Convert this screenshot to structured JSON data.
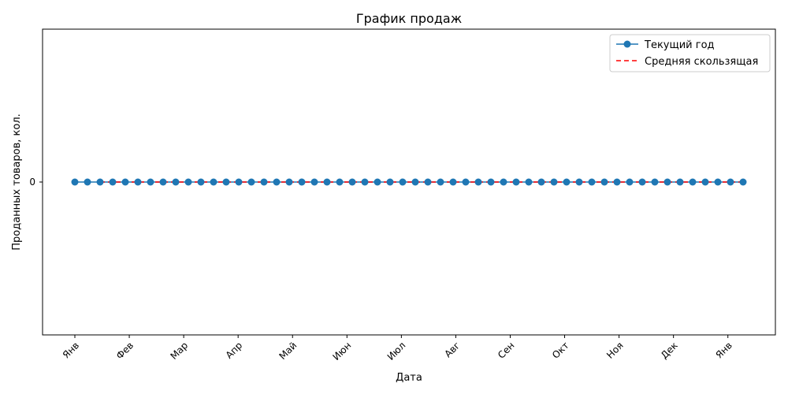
{
  "chart_data": {
    "type": "line",
    "title": "График продаж",
    "xlabel": "Дата",
    "ylabel": "Проданных товаров, кол.",
    "x_tick_labels": [
      "Янв",
      "Фев",
      "Мар",
      "Апр",
      "Май",
      "Июн",
      "Июл",
      "Авг",
      "Сен",
      "Окт",
      "Ноя",
      "Дек",
      "Янв"
    ],
    "y_tick_labels": [
      "0"
    ],
    "y_ticks": [
      0
    ],
    "ylim": [
      -0.06,
      0.06
    ],
    "legend_position": "top-right",
    "series": [
      {
        "name": "Текущий год",
        "style": "solid-line-with-circle-markers",
        "color": "#1f77b4",
        "point_count": 54,
        "values": [
          0,
          0,
          0,
          0,
          0,
          0,
          0,
          0,
          0,
          0,
          0,
          0,
          0,
          0,
          0,
          0,
          0,
          0,
          0,
          0,
          0,
          0,
          0,
          0,
          0,
          0,
          0,
          0,
          0,
          0,
          0,
          0,
          0,
          0,
          0,
          0,
          0,
          0,
          0,
          0,
          0,
          0,
          0,
          0,
          0,
          0,
          0,
          0,
          0,
          0,
          0,
          0,
          0,
          0
        ]
      },
      {
        "name": "Средняя скользящая",
        "style": "dashed-line",
        "color": "#ff0000",
        "values": [
          0,
          0,
          0,
          0,
          0,
          0,
          0,
          0,
          0,
          0,
          0,
          0,
          0,
          0,
          0,
          0,
          0,
          0,
          0,
          0,
          0,
          0,
          0,
          0,
          0,
          0,
          0,
          0,
          0,
          0,
          0,
          0,
          0,
          0,
          0,
          0,
          0,
          0,
          0,
          0,
          0,
          0,
          0,
          0,
          0,
          0,
          0,
          0,
          0,
          0,
          0,
          0,
          0,
          0
        ]
      }
    ]
  }
}
